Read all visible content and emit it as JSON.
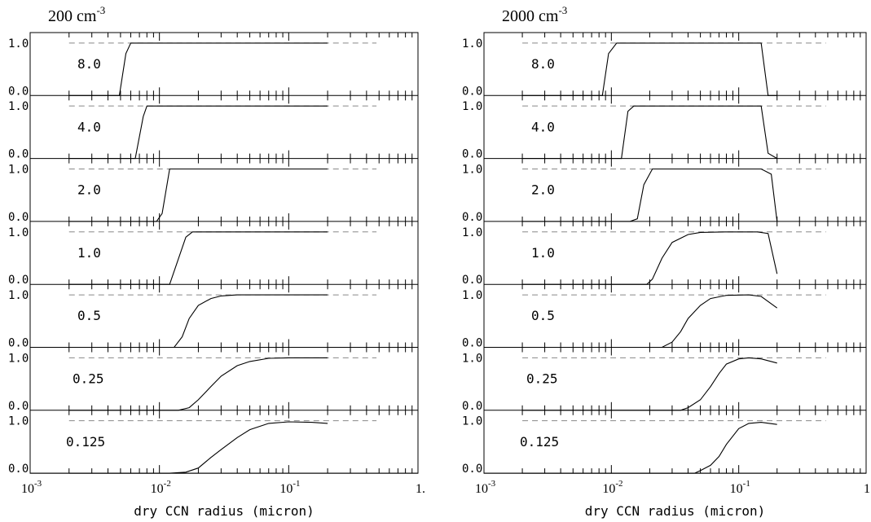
{
  "figure": {
    "xlabel": "dry CCN radius (micron)",
    "x_tick_labels": [
      {
        "base": "10",
        "exp": "-3",
        "value": 0.001
      },
      {
        "base": "10",
        "exp": "-2",
        "value": 0.01
      },
      {
        "base": "10",
        "exp": "-1",
        "value": 0.1
      },
      {
        "base": "1.",
        "exp": "",
        "value": 1.0
      }
    ],
    "y_tick_labels": [
      "1.0",
      "0.0"
    ]
  },
  "chart_data": [
    {
      "type": "line",
      "title": "200 cm",
      "title_exponent": "-3",
      "xlabel": "dry CCN radius (micron)",
      "x_scale": "log",
      "xlim": [
        0.001,
        1.0
      ],
      "ylim": [
        0,
        1.2
      ],
      "dashed_reference_y": 1.0,
      "panels": [
        {
          "label": "8.0",
          "x": [
            0.002,
            0.0049,
            0.0055,
            0.006,
            0.2
          ],
          "y": [
            0,
            0,
            0.8,
            1.0,
            1.0
          ]
        },
        {
          "label": "4.0",
          "x": [
            0.002,
            0.0065,
            0.0075,
            0.008,
            0.2
          ],
          "y": [
            0,
            0,
            0.8,
            1.0,
            1.0
          ]
        },
        {
          "label": "2.0",
          "x": [
            0.002,
            0.0095,
            0.0105,
            0.012,
            0.2
          ],
          "y": [
            0,
            0,
            0.15,
            1.0,
            1.0
          ]
        },
        {
          "label": "1.0",
          "x": [
            0.002,
            0.012,
            0.016,
            0.018,
            0.2
          ],
          "y": [
            0,
            0,
            0.9,
            1.0,
            1.0
          ]
        },
        {
          "label": "0.5",
          "x": [
            0.002,
            0.013,
            0.015,
            0.017,
            0.02,
            0.025,
            0.03,
            0.04,
            0.06,
            0.2
          ],
          "y": [
            0,
            0,
            0.2,
            0.55,
            0.8,
            0.93,
            0.98,
            1.0,
            1.0,
            1.0
          ]
        },
        {
          "label": "0.25",
          "x": [
            0.002,
            0.014,
            0.017,
            0.02,
            0.025,
            0.03,
            0.04,
            0.05,
            0.07,
            0.1,
            0.2
          ],
          "y": [
            0,
            0,
            0.05,
            0.2,
            0.45,
            0.65,
            0.85,
            0.93,
            0.99,
            1.0,
            1.0
          ]
        },
        {
          "label": "0.125",
          "x": [
            0.002,
            0.012,
            0.016,
            0.02,
            0.025,
            0.03,
            0.04,
            0.05,
            0.07,
            0.1,
            0.15,
            0.2
          ],
          "y": [
            0,
            0,
            0.02,
            0.1,
            0.3,
            0.45,
            0.68,
            0.83,
            0.95,
            0.98,
            0.97,
            0.95
          ]
        }
      ]
    },
    {
      "type": "line",
      "title": "2000 cm",
      "title_exponent": "-3",
      "xlabel": "dry CCN radius (micron)",
      "x_scale": "log",
      "xlim": [
        0.001,
        1.0
      ],
      "ylim": [
        0,
        1.2
      ],
      "dashed_reference_y": 1.0,
      "panels": [
        {
          "label": "8.0",
          "x": [
            0.002,
            0.0085,
            0.0095,
            0.011,
            0.15,
            0.17,
            0.2
          ],
          "y": [
            0,
            0,
            0.8,
            1.0,
            1.0,
            0,
            0
          ]
        },
        {
          "label": "4.0",
          "x": [
            0.002,
            0.012,
            0.0135,
            0.015,
            0.15,
            0.17,
            0.2
          ],
          "y": [
            0,
            0,
            0.9,
            1.0,
            1.0,
            0.1,
            0
          ]
        },
        {
          "label": "2.0",
          "x": [
            0.002,
            0.014,
            0.016,
            0.018,
            0.021,
            0.15,
            0.18,
            0.2
          ],
          "y": [
            0,
            0,
            0.05,
            0.7,
            1.0,
            1.0,
            0.9,
            0
          ]
        },
        {
          "label": "1.0",
          "x": [
            0.002,
            0.019,
            0.021,
            0.025,
            0.03,
            0.04,
            0.05,
            0.08,
            0.14,
            0.17,
            0.2
          ],
          "y": [
            0,
            0,
            0.1,
            0.5,
            0.8,
            0.95,
            0.99,
            1.0,
            1.0,
            0.97,
            0.2
          ]
        },
        {
          "label": "0.5",
          "x": [
            0.002,
            0.025,
            0.03,
            0.035,
            0.04,
            0.05,
            0.06,
            0.08,
            0.12,
            0.15,
            0.2
          ],
          "y": [
            0,
            0,
            0.1,
            0.3,
            0.55,
            0.8,
            0.93,
            0.99,
            1.0,
            0.97,
            0.75
          ]
        },
        {
          "label": "0.25",
          "x": [
            0.002,
            0.035,
            0.04,
            0.05,
            0.06,
            0.07,
            0.08,
            0.1,
            0.12,
            0.15,
            0.2
          ],
          "y": [
            0,
            0,
            0.05,
            0.2,
            0.45,
            0.7,
            0.88,
            0.98,
            1.0,
            0.98,
            0.9
          ]
        },
        {
          "label": "0.125",
          "x": [
            0.002,
            0.045,
            0.05,
            0.06,
            0.07,
            0.08,
            0.1,
            0.12,
            0.15,
            0.2
          ],
          "y": [
            0,
            0,
            0.05,
            0.15,
            0.32,
            0.55,
            0.85,
            0.95,
            0.97,
            0.93
          ]
        }
      ]
    }
  ]
}
